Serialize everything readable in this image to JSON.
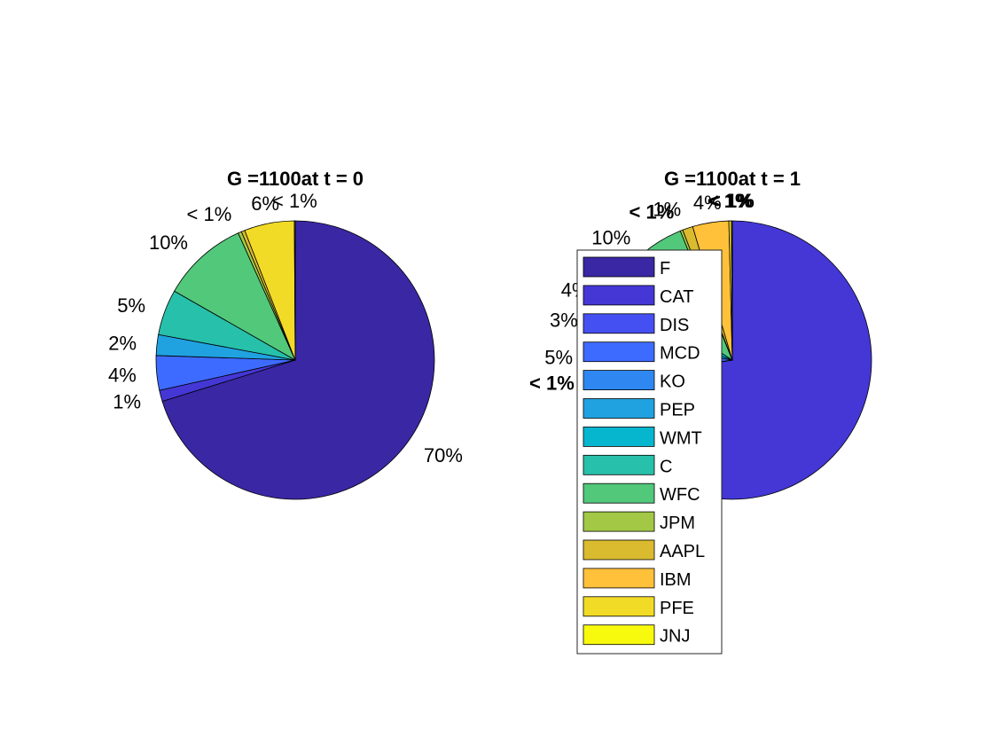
{
  "chart_data": [
    {
      "type": "pie",
      "title": "G =1100at t = 0",
      "slices": [
        {
          "name": "F",
          "value": 70.0,
          "label": "70%"
        },
        {
          "name": "CAT",
          "value": 1.3,
          "label": "1%"
        },
        {
          "name": "DIS",
          "value": 0.0,
          "label": ""
        },
        {
          "name": "MCD",
          "value": 4.0,
          "label": "4%"
        },
        {
          "name": "KO",
          "value": 0.0,
          "label": ""
        },
        {
          "name": "PEP",
          "value": 2.4,
          "label": "2%"
        },
        {
          "name": "WMT",
          "value": 0.0,
          "label": ""
        },
        {
          "name": "C",
          "value": 5.3,
          "label": "5%"
        },
        {
          "name": "WFC",
          "value": 10.0,
          "label": "10%"
        },
        {
          "name": "JPM",
          "value": 0.4,
          "label": "< 1%"
        },
        {
          "name": "AAPL",
          "value": 0.4,
          "label": ""
        },
        {
          "name": "IBM",
          "value": 0.0,
          "label": ""
        },
        {
          "name": "PFE",
          "value": 5.8,
          "label": "6%"
        },
        {
          "name": "JNJ",
          "value": 0.1,
          "label": "< 1%"
        }
      ]
    },
    {
      "type": "pie",
      "title": "G =1100at t = 1",
      "slices": [
        {
          "name": "F",
          "value": 0.0,
          "label": ""
        },
        {
          "name": "CAT",
          "value": 72.5,
          "label": ""
        },
        {
          "name": "DIS",
          "value": 0.5,
          "label": "< 1%"
        },
        {
          "name": "MCD",
          "value": 4.6,
          "label": "5%"
        },
        {
          "name": "KO",
          "value": 0.0,
          "label": ""
        },
        {
          "name": "PEP",
          "value": 2.9,
          "label": "3%"
        },
        {
          "name": "WMT",
          "value": 3.6,
          "label": "4%"
        },
        {
          "name": "C",
          "value": 0.0,
          "label": ""
        },
        {
          "name": "WFC",
          "value": 9.8,
          "label": "10%"
        },
        {
          "name": "JPM",
          "value": 0.3,
          "label": "< 1%"
        },
        {
          "name": "AAPL",
          "value": 1.2,
          "label": "1%"
        },
        {
          "name": "IBM",
          "value": 4.2,
          "label": "4%"
        },
        {
          "name": "PFE",
          "value": 0.3,
          "label": "< 1%"
        },
        {
          "name": "JNJ",
          "value": 0.1,
          "label": "< 1%"
        }
      ]
    }
  ],
  "legend": {
    "placement": "center",
    "entries": [
      {
        "name": "F",
        "color": "#3A27A4"
      },
      {
        "name": "CAT",
        "color": "#4437D6"
      },
      {
        "name": "DIS",
        "color": "#4550F2"
      },
      {
        "name": "MCD",
        "color": "#3E6BFF"
      },
      {
        "name": "KO",
        "color": "#2F87F2"
      },
      {
        "name": "PEP",
        "color": "#20A2E1"
      },
      {
        "name": "WMT",
        "color": "#06B6CF"
      },
      {
        "name": "C",
        "color": "#27C0AA"
      },
      {
        "name": "WFC",
        "color": "#52C87A"
      },
      {
        "name": "JPM",
        "color": "#A2C845"
      },
      {
        "name": "AAPL",
        "color": "#DABB2F"
      },
      {
        "name": "IBM",
        "color": "#FFC13A"
      },
      {
        "name": "PFE",
        "color": "#F2DB26"
      },
      {
        "name": "JNJ",
        "color": "#F8FA0D"
      }
    ]
  }
}
